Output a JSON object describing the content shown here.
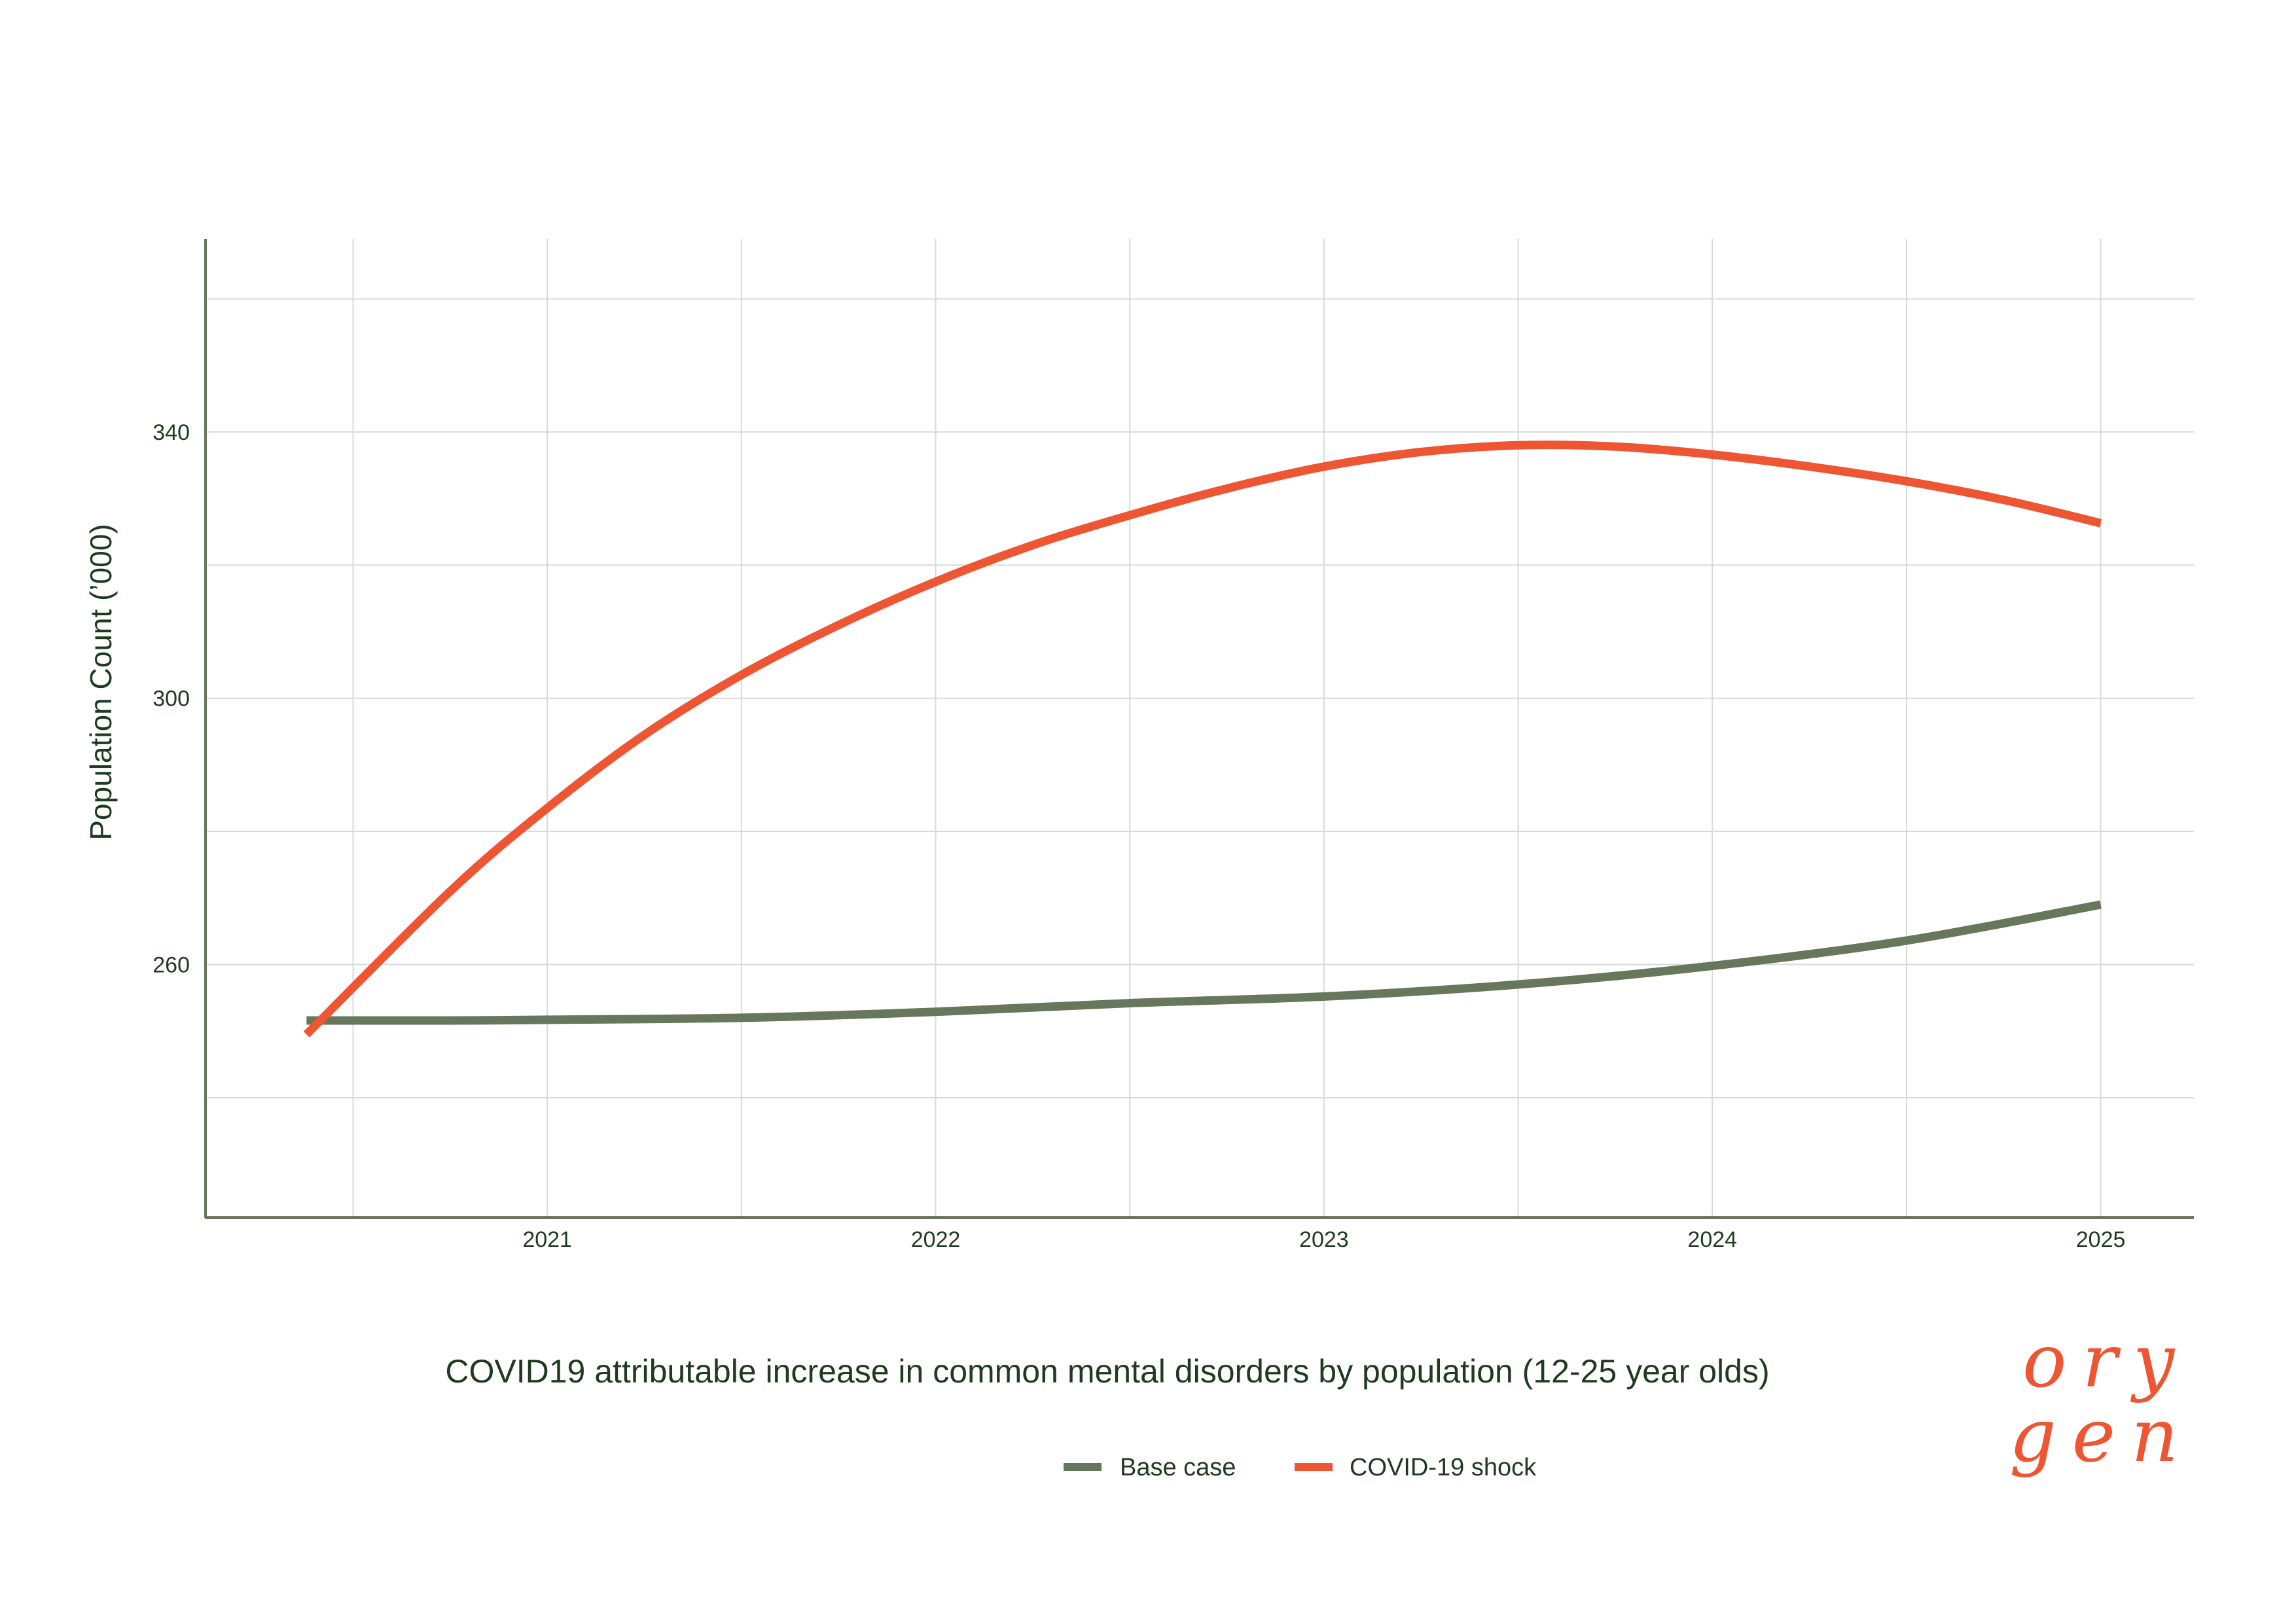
{
  "chart_data": {
    "type": "line",
    "title": "COVID19 attributable increase in common mental disorders by population (12-25 year olds)",
    "xlabel": "",
    "ylabel": "Population Count (’000)",
    "xlim": [
      2020.12,
      2025.24
    ],
    "ylim": [
      222,
      369
    ],
    "x_ticks": [
      2021,
      2022,
      2023,
      2024,
      2025
    ],
    "x_tick_labels": [
      "2021",
      "2022",
      "2023",
      "2024",
      "2025"
    ],
    "y_ticks": [
      260,
      300,
      340
    ],
    "y_tick_labels": [
      "260",
      "300",
      "340"
    ],
    "x_minor_gridlines": [
      2020.5,
      2021.5,
      2022.5,
      2023.5,
      2024.5
    ],
    "y_minor_gridlines": [
      240,
      280,
      320,
      360
    ],
    "grid": true,
    "legend_position": "bottom-center",
    "colors": {
      "base": "#66775c",
      "covid": "#ee5533",
      "axis": "#66775c",
      "grid": "#d9d9d9",
      "text": "#1f3a1f"
    },
    "series": [
      {
        "name": "Base case",
        "color": "#66775c",
        "x": [
          2020.38,
          2020.75,
          2021.0,
          2021.5,
          2022.0,
          2022.5,
          2023.0,
          2023.5,
          2024.0,
          2024.5,
          2025.0
        ],
        "values": [
          251.6,
          251.6,
          251.7,
          252.0,
          252.9,
          254.2,
          255.2,
          257.0,
          259.8,
          263.6,
          269.0
        ]
      },
      {
        "name": "COVID-19 shock",
        "color": "#ee5533",
        "x": [
          2020.38,
          2020.75,
          2021.0,
          2021.25,
          2021.5,
          2021.75,
          2022.0,
          2022.25,
          2022.5,
          2022.75,
          2023.0,
          2023.25,
          2023.5,
          2023.75,
          2024.0,
          2024.25,
          2024.5,
          2024.75,
          2025.0
        ],
        "values": [
          249.5,
          271.0,
          283.5,
          294.5,
          303.5,
          311.0,
          317.5,
          323.0,
          327.5,
          331.5,
          334.8,
          337.0,
          338.0,
          337.8,
          336.6,
          334.8,
          332.6,
          329.8,
          326.3
        ]
      }
    ]
  },
  "logo": {
    "text_top": "ory",
    "text_bottom": "gen",
    "color": "#ee5533"
  }
}
